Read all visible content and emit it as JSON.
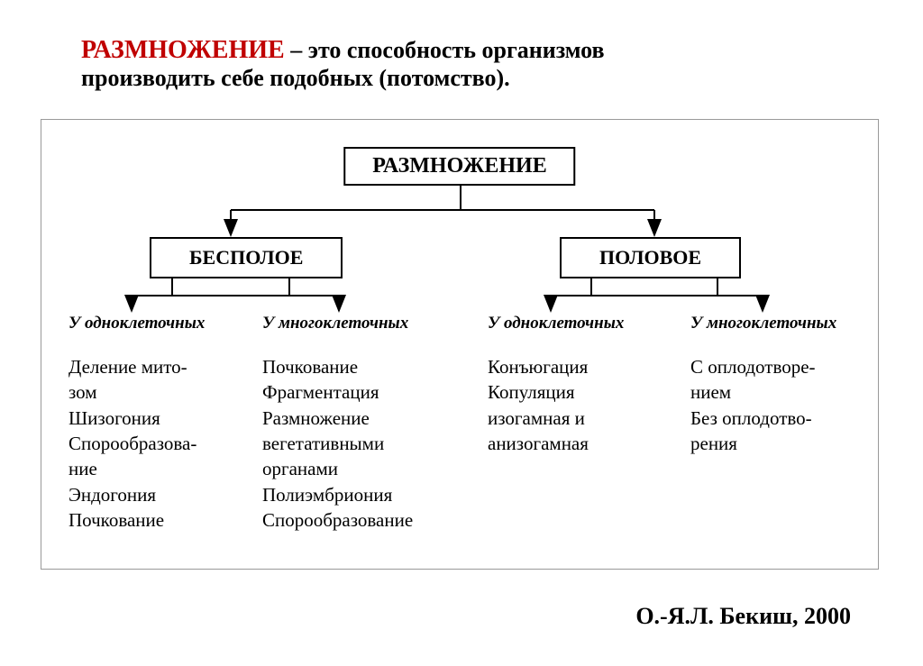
{
  "header": {
    "title": "РАЗМНОЖЕНИЕ",
    "definition_part1": " – это способность организмов",
    "definition_part2": "производить себе подобных (потомство)."
  },
  "diagram": {
    "root": "РАЗМНОЖЕНИЕ",
    "branches": {
      "left": "БЕСПОЛОЕ",
      "right": "ПОЛОВОЕ"
    },
    "categories": {
      "cat1": "У одноклеточных",
      "cat2": "У многоклеточных",
      "cat3": "У одноклеточных",
      "cat4": "У многоклеточных"
    },
    "lists": {
      "list1": [
        "Деление мито-",
        "зом",
        "Шизогония",
        "Спорообразова-",
        "ние",
        "Эндогония",
        "Почкование"
      ],
      "list2": [
        "Почкование",
        "Фрагментация",
        "Размножение",
        "вегетативными",
        "органами",
        "Полиэмбриония",
        "Спорообразование"
      ],
      "list3": [
        "Конъюгация",
        "Копуляция",
        "изогамная и",
        "анизогамная"
      ],
      "list4": [
        "С оплодотворе-",
        "нием",
        "Без оплодотво-",
        "рения"
      ]
    }
  },
  "citation": "О.-Я.Л. Бекиш, 2000",
  "colors": {
    "title": "#c00000",
    "text": "#000000",
    "border": "#000000",
    "background": "#ffffff"
  },
  "arrows": {
    "stroke": "#000000",
    "stroke_width": 2,
    "head_size": 8
  }
}
